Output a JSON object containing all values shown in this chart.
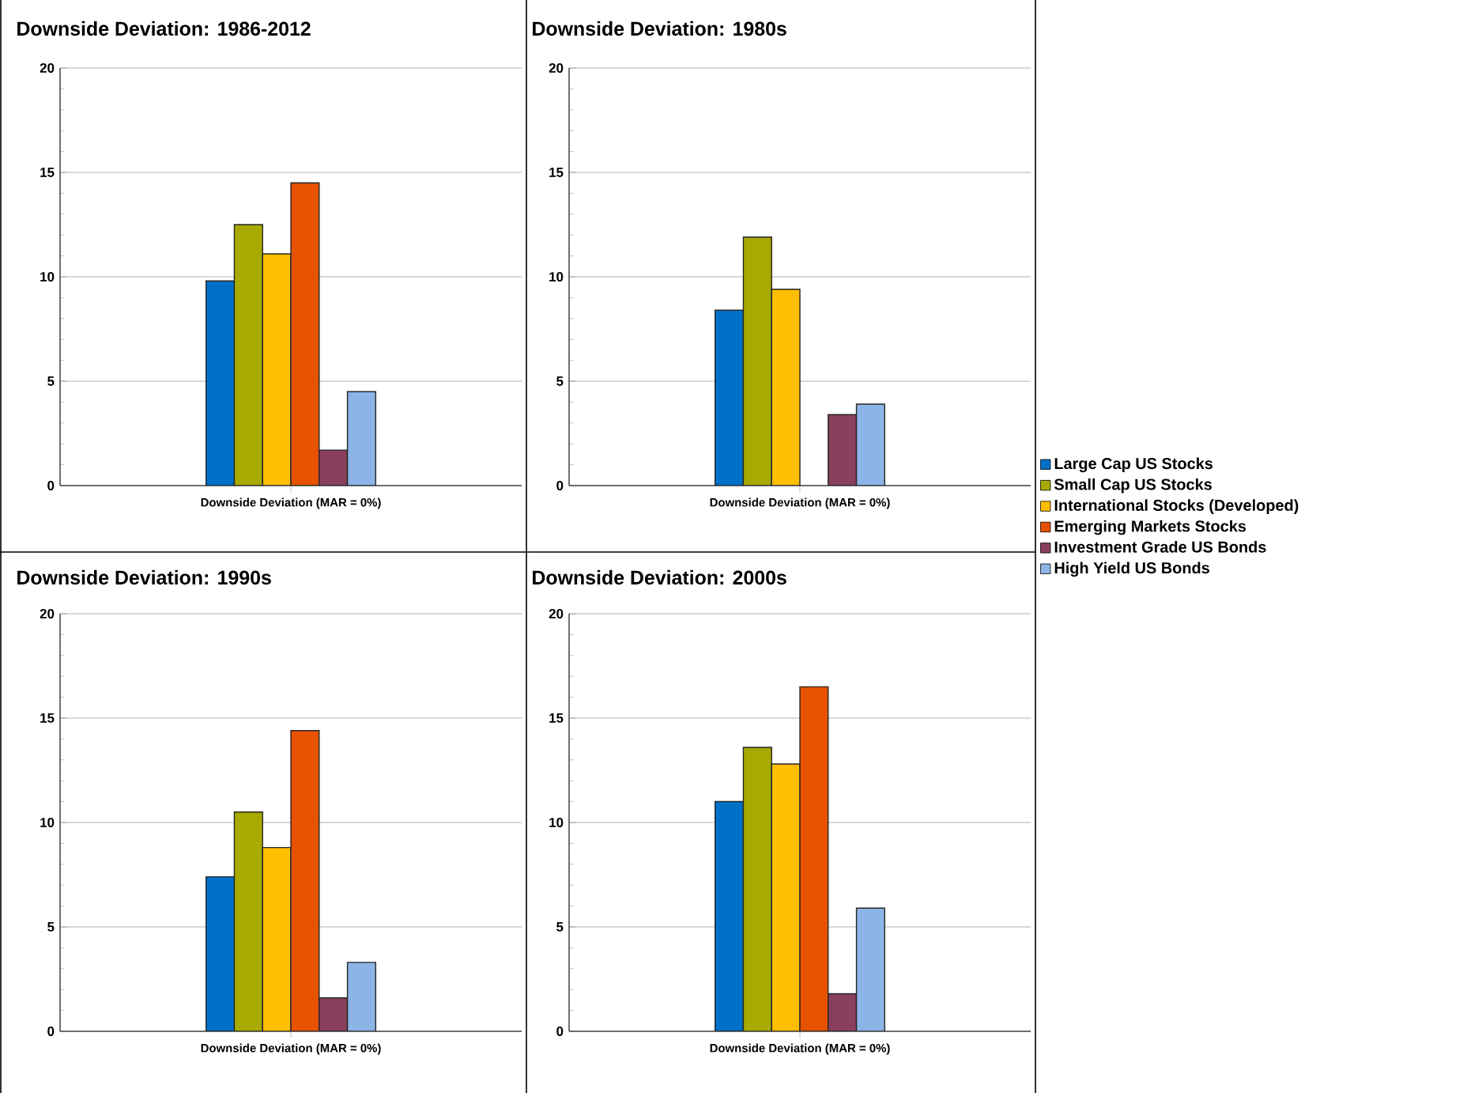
{
  "chart_data": [
    {
      "type": "bar",
      "title": "Downside Deviation: 1986-2012",
      "categories": [
        "Downside Deviation (MAR = 0%)"
      ],
      "ylim": [
        0,
        20
      ],
      "yticks": [
        0,
        5,
        10,
        15,
        20
      ],
      "grid": "y",
      "series": [
        {
          "color": "#0070c8",
          "values": [
            9.8
          ]
        },
        {
          "color": "#a8aa00",
          "values": [
            12.5
          ]
        },
        {
          "color": "#ffbe00",
          "values": [
            11.1
          ]
        },
        {
          "color": "#e65200",
          "values": [
            14.5
          ]
        },
        {
          "color": "#88405e",
          "values": [
            1.7
          ]
        },
        {
          "color": "#8db4e6",
          "values": [
            4.5
          ]
        }
      ]
    },
    {
      "type": "bar",
      "title": "Downside Deviation: 1980s",
      "categories": [
        "Downside Deviation (MAR = 0%)"
      ],
      "ylim": [
        0,
        20
      ],
      "yticks": [
        0,
        5,
        10,
        15,
        20
      ],
      "grid": "y",
      "legend": "right",
      "series": [
        {
          "name": "Large Cap US Stocks",
          "color": "#0070c8",
          "values": [
            8.4
          ]
        },
        {
          "name": "Small Cap US Stocks",
          "color": "#a8aa00",
          "values": [
            11.9
          ]
        },
        {
          "name": "International Stocks (Developed)",
          "color": "#ffbe00",
          "values": [
            9.4
          ]
        },
        {
          "name": "Emerging Markets Stocks",
          "color": "#e65200",
          "values": [
            null
          ]
        },
        {
          "name": "Investment Grade US Bonds",
          "color": "#88405e",
          "values": [
            3.4
          ]
        },
        {
          "name": "High Yield US Bonds",
          "color": "#8db4e6",
          "values": [
            3.9
          ]
        }
      ]
    },
    {
      "type": "bar",
      "title": "Downside Deviation: 1990s",
      "categories": [
        "Downside Deviation (MAR = 0%)"
      ],
      "ylim": [
        0,
        20
      ],
      "yticks": [
        0,
        5,
        10,
        15,
        20
      ],
      "grid": "y",
      "series": [
        {
          "color": "#0070c8",
          "values": [
            7.4
          ]
        },
        {
          "color": "#a8aa00",
          "values": [
            10.5
          ]
        },
        {
          "color": "#ffbe00",
          "values": [
            8.8
          ]
        },
        {
          "color": "#e65200",
          "values": [
            14.4
          ]
        },
        {
          "color": "#88405e",
          "values": [
            1.6
          ]
        },
        {
          "color": "#8db4e6",
          "values": [
            3.3
          ]
        }
      ]
    },
    {
      "type": "bar",
      "title": "Downside Deviation: 2000s",
      "categories": [
        "Downside Deviation (MAR = 0%)"
      ],
      "ylim": [
        0,
        20
      ],
      "yticks": [
        0,
        5,
        10,
        15,
        20
      ],
      "grid": "y",
      "series": [
        {
          "color": "#0070c8",
          "values": [
            11.0
          ]
        },
        {
          "color": "#a8aa00",
          "values": [
            13.6
          ]
        },
        {
          "color": "#ffbe00",
          "values": [
            12.8
          ]
        },
        {
          "color": "#e65200",
          "values": [
            16.5
          ]
        },
        {
          "color": "#88405e",
          "values": [
            1.8
          ]
        },
        {
          "color": "#8db4e6",
          "values": [
            5.9
          ]
        }
      ]
    }
  ]
}
